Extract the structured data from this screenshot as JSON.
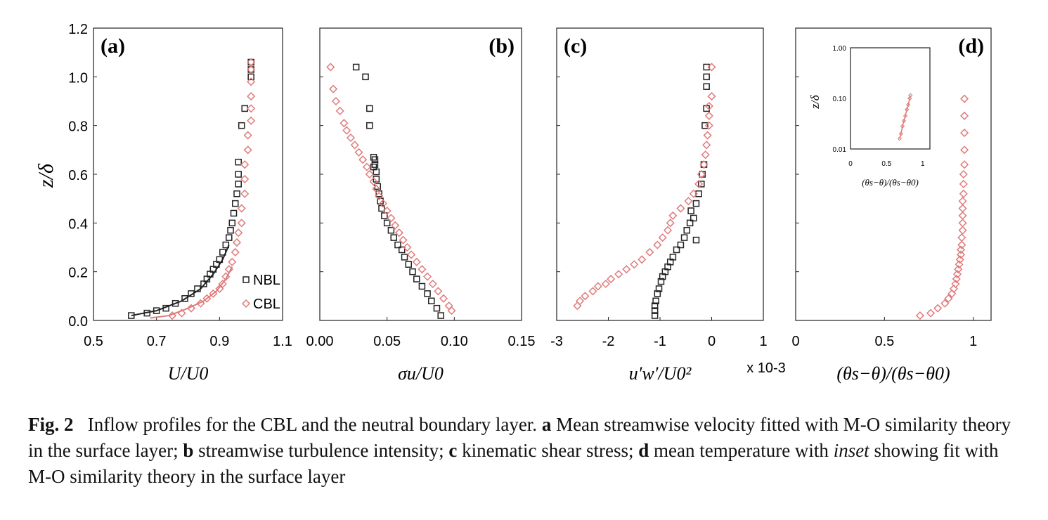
{
  "figure": {
    "shared_ylabel": "z/δ",
    "multiplier_label": "x 10-3",
    "inset": {
      "ylabel": "z/δ",
      "xlabel": "(θs−θ)/(θs−θ0)",
      "yticks": [
        "1.00",
        "0.10",
        "0.01"
      ],
      "xticks": [
        "0",
        "0.5",
        "1"
      ]
    }
  },
  "colors": {
    "nbl": "#222222",
    "cbl": "#e07b7b"
  },
  "chart_data": [
    {
      "panel": "(a)",
      "type": "scatter",
      "xlabel": "U/U0",
      "xlim": [
        0.5,
        1.1
      ],
      "xticks": [
        "0.5",
        "0.7",
        "0.9",
        "1.1"
      ],
      "ylim": [
        0,
        1.2
      ],
      "yticks": [
        "0.0",
        "0.2",
        "0.4",
        "0.6",
        "0.8",
        "1.0",
        "1.2"
      ],
      "legend": {
        "position": "bottom-right",
        "entries": [
          "NBL",
          "CBL"
        ]
      },
      "series": [
        {
          "name": "NBL",
          "marker": "square",
          "x": [
            0.62,
            0.67,
            0.7,
            0.73,
            0.76,
            0.79,
            0.81,
            0.83,
            0.85,
            0.86,
            0.87,
            0.88,
            0.89,
            0.9,
            0.91,
            0.92,
            0.93,
            0.935,
            0.94,
            0.945,
            0.95,
            0.955,
            0.96,
            0.96,
            0.96,
            0.97,
            0.98,
            1.0,
            1.0,
            1.0
          ],
          "y": [
            0.02,
            0.03,
            0.04,
            0.05,
            0.07,
            0.09,
            0.11,
            0.13,
            0.15,
            0.17,
            0.19,
            0.21,
            0.23,
            0.25,
            0.28,
            0.31,
            0.34,
            0.37,
            0.4,
            0.44,
            0.48,
            0.52,
            0.56,
            0.6,
            0.65,
            0.8,
            0.87,
            1.0,
            1.03,
            1.06
          ]
        },
        {
          "name": "CBL",
          "marker": "diamond",
          "x": [
            0.75,
            0.78,
            0.81,
            0.84,
            0.86,
            0.88,
            0.9,
            0.91,
            0.92,
            0.93,
            0.94,
            0.95,
            0.955,
            0.96,
            0.97,
            0.97,
            0.98,
            0.98,
            0.98,
            0.99,
            0.99,
            1.0,
            1.0,
            1.0,
            1.0,
            1.0,
            1.0
          ],
          "y": [
            0.02,
            0.03,
            0.05,
            0.07,
            0.09,
            0.11,
            0.13,
            0.15,
            0.18,
            0.21,
            0.24,
            0.28,
            0.32,
            0.36,
            0.4,
            0.46,
            0.52,
            0.58,
            0.64,
            0.7,
            0.76,
            0.82,
            0.87,
            0.92,
            0.98,
            1.03,
            1.06
          ]
        }
      ],
      "fit_lines": [
        {
          "series": "NBL",
          "x": [
            0.62,
            0.7,
            0.78,
            0.84,
            0.88,
            0.91,
            0.93
          ],
          "y": [
            0.02,
            0.04,
            0.08,
            0.13,
            0.19,
            0.25,
            0.31
          ]
        },
        {
          "series": "CBL",
          "x": [
            0.68,
            0.74,
            0.8,
            0.85,
            0.89,
            0.92,
            0.94
          ],
          "y": [
            0.01,
            0.02,
            0.05,
            0.08,
            0.12,
            0.17,
            0.22
          ]
        }
      ]
    },
    {
      "panel": "(b)",
      "type": "scatter",
      "xlabel": "σu/U0",
      "xlim": [
        0.0,
        0.15
      ],
      "xticks": [
        "0.00",
        "0.05",
        "0.10",
        "0.15"
      ],
      "ylim": [
        0,
        1.2
      ],
      "series": [
        {
          "name": "NBL",
          "marker": "square",
          "x": [
            0.09,
            0.087,
            0.083,
            0.08,
            0.076,
            0.072,
            0.069,
            0.066,
            0.063,
            0.061,
            0.058,
            0.055,
            0.053,
            0.05,
            0.048,
            0.046,
            0.045,
            0.044,
            0.043,
            0.042,
            0.042,
            0.041,
            0.041,
            0.04,
            0.04,
            0.037,
            0.037,
            0.034,
            0.027
          ],
          "y": [
            0.02,
            0.05,
            0.08,
            0.11,
            0.14,
            0.17,
            0.2,
            0.23,
            0.26,
            0.29,
            0.31,
            0.34,
            0.37,
            0.4,
            0.43,
            0.46,
            0.49,
            0.52,
            0.55,
            0.58,
            0.61,
            0.64,
            0.66,
            0.67,
            0.63,
            0.8,
            0.87,
            1.0,
            1.04
          ]
        },
        {
          "name": "CBL",
          "marker": "diamond",
          "x": [
            0.098,
            0.096,
            0.092,
            0.088,
            0.084,
            0.08,
            0.076,
            0.072,
            0.068,
            0.065,
            0.062,
            0.059,
            0.056,
            0.053,
            0.05,
            0.047,
            0.044,
            0.042,
            0.04,
            0.037,
            0.035,
            0.032,
            0.029,
            0.026,
            0.023,
            0.02,
            0.018,
            0.015,
            0.012,
            0.01,
            0.008
          ],
          "y": [
            0.04,
            0.06,
            0.09,
            0.12,
            0.15,
            0.18,
            0.21,
            0.24,
            0.27,
            0.3,
            0.33,
            0.36,
            0.39,
            0.42,
            0.45,
            0.48,
            0.51,
            0.54,
            0.57,
            0.6,
            0.63,
            0.66,
            0.69,
            0.72,
            0.75,
            0.78,
            0.81,
            0.86,
            0.9,
            0.95,
            1.04
          ]
        }
      ]
    },
    {
      "panel": "(c)",
      "type": "scatter",
      "xlabel": "u′w′/U0²",
      "xlim": [
        -3,
        1
      ],
      "xticks": [
        "-3",
        "-2",
        "-1",
        "0",
        "1"
      ],
      "ylim": [
        0,
        1.2
      ],
      "series": [
        {
          "name": "NBL",
          "marker": "square",
          "x": [
            -1.1,
            -1.1,
            -1.1,
            -1.08,
            -1.05,
            -1.02,
            -0.98,
            -0.95,
            -0.9,
            -0.85,
            -0.8,
            -0.75,
            -0.68,
            -0.6,
            -0.53,
            -0.48,
            -0.42,
            -0.35,
            -0.4,
            -0.3,
            -0.3,
            -0.25,
            -0.2,
            -0.18,
            -0.15,
            -0.13,
            -0.1,
            -0.1,
            -0.1,
            -0.1
          ],
          "y": [
            0.02,
            0.04,
            0.06,
            0.08,
            0.11,
            0.13,
            0.16,
            0.18,
            0.2,
            0.22,
            0.24,
            0.26,
            0.29,
            0.31,
            0.34,
            0.37,
            0.4,
            0.42,
            0.45,
            0.48,
            0.33,
            0.52,
            0.56,
            0.6,
            0.64,
            0.8,
            0.87,
            0.96,
            1.0,
            1.04
          ]
        },
        {
          "name": "CBL",
          "marker": "diamond",
          "x": [
            -2.6,
            -2.55,
            -2.45,
            -2.3,
            -2.2,
            -2.05,
            -1.95,
            -1.8,
            -1.65,
            -1.5,
            -1.35,
            -1.2,
            -1.05,
            -0.95,
            -0.85,
            -0.8,
            -0.75,
            -0.6,
            -0.45,
            -0.35,
            -0.25,
            -0.2,
            -0.15,
            -0.12,
            -0.1,
            -0.08,
            -0.05,
            -0.05,
            -0.05,
            0.0,
            0.0
          ],
          "y": [
            0.06,
            0.08,
            0.1,
            0.12,
            0.14,
            0.15,
            0.17,
            0.19,
            0.21,
            0.23,
            0.25,
            0.28,
            0.31,
            0.34,
            0.37,
            0.4,
            0.43,
            0.46,
            0.49,
            0.52,
            0.56,
            0.6,
            0.64,
            0.68,
            0.72,
            0.76,
            0.8,
            0.84,
            0.88,
            0.92,
            1.04
          ]
        }
      ]
    },
    {
      "panel": "(d)",
      "type": "scatter",
      "xlabel": "(θs−θ)/(θs−θ0)",
      "xlim": [
        0,
        1.1
      ],
      "xticks": [
        "0",
        "0.5",
        "1"
      ],
      "ylim": [
        0,
        1.2
      ],
      "series": [
        {
          "name": "CBL",
          "marker": "diamond",
          "x": [
            0.7,
            0.76,
            0.8,
            0.84,
            0.86,
            0.88,
            0.89,
            0.9,
            0.905,
            0.91,
            0.915,
            0.92,
            0.925,
            0.93,
            0.93,
            0.935,
            0.935,
            0.94,
            0.94,
            0.94,
            0.94,
            0.94,
            0.945,
            0.945,
            0.945,
            0.95,
            0.95,
            0.95,
            0.95,
            0.95
          ],
          "y": [
            0.02,
            0.03,
            0.05,
            0.07,
            0.09,
            0.11,
            0.13,
            0.15,
            0.17,
            0.19,
            0.21,
            0.23,
            0.25,
            0.27,
            0.29,
            0.31,
            0.34,
            0.37,
            0.4,
            0.43,
            0.46,
            0.49,
            0.52,
            0.56,
            0.6,
            0.64,
            0.7,
            0.77,
            0.84,
            0.91
          ]
        }
      ]
    }
  ],
  "caption": {
    "fig_label": "Fig. 2",
    "text_1": "Inflow profiles for the CBL and the neutral boundary layer.",
    "a": "a",
    "text_a": "Mean streamwise velocity fitted with M-O similarity theory in the surface layer;",
    "b": "b",
    "text_b": "streamwise turbulence intensity;",
    "c": "c",
    "text_c": "kinematic shear stress;",
    "d": "d",
    "text_d": "mean temperature with",
    "inset_word": "inset",
    "text_end": "showing fit with M-O similarity theory in the surface layer"
  }
}
